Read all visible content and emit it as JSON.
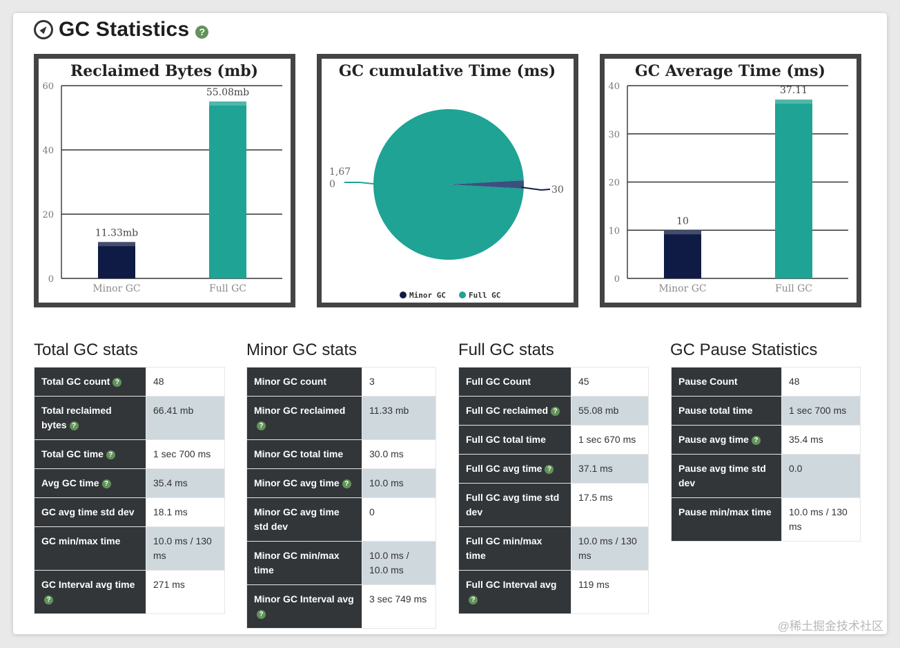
{
  "header": {
    "title": "GC Statistics",
    "help_icon": "question-circle-icon",
    "title_icon": "compass-icon"
  },
  "colors": {
    "minor": "#0f1b45",
    "full": "#1ea394",
    "table_key_bg": "#323639",
    "table_alt_bg": "#cfd8dd",
    "help": "#62935a"
  },
  "charts": {
    "reclaimed": {
      "type": "bar",
      "title": "Reclaimed Bytes (mb)",
      "categories": [
        "Minor GC",
        "Full GC"
      ],
      "values": [
        11.33,
        55.08
      ],
      "labels": [
        "11.33mb",
        "55.08mb"
      ],
      "yticks": [
        "0",
        "20",
        "40",
        "60"
      ],
      "ylim": [
        0,
        60
      ]
    },
    "cumulative": {
      "type": "pie",
      "title": "GC cumulative Time (ms)",
      "slices": [
        {
          "name": "Minor GC",
          "value": 30,
          "label": "30"
        },
        {
          "name": "Full GC",
          "value": 1670,
          "label_line1": "1,67",
          "label_line2": "0"
        }
      ],
      "legend": [
        "Minor GC",
        "Full GC"
      ]
    },
    "average": {
      "type": "bar",
      "title": "GC Average Time (ms)",
      "categories": [
        "Minor GC",
        "Full GC"
      ],
      "values": [
        10,
        37.11
      ],
      "labels": [
        "10",
        "37.11"
      ],
      "yticks": [
        "0",
        "10",
        "20",
        "30",
        "40"
      ],
      "ylim": [
        0,
        40
      ]
    }
  },
  "chart_data": [
    {
      "type": "bar",
      "title": "Reclaimed Bytes (mb)",
      "categories": [
        "Minor GC",
        "Full GC"
      ],
      "values": [
        11.33,
        55.08
      ],
      "ylim": [
        0,
        60
      ]
    },
    {
      "type": "pie",
      "title": "GC cumulative Time (ms)",
      "categories": [
        "Minor GC",
        "Full GC"
      ],
      "values": [
        30,
        1670
      ]
    },
    {
      "type": "bar",
      "title": "GC Average Time (ms)",
      "categories": [
        "Minor GC",
        "Full GC"
      ],
      "values": [
        10,
        37.11
      ],
      "ylim": [
        0,
        40
      ]
    }
  ],
  "tables": {
    "total": {
      "title": "Total GC stats",
      "rows": [
        {
          "k": "Total GC count",
          "v": "48",
          "help": true
        },
        {
          "k": "Total reclaimed bytes",
          "v": "66.41 mb",
          "help": true
        },
        {
          "k": "Total GC time",
          "v": "1 sec 700 ms",
          "help": true
        },
        {
          "k": "Avg GC time",
          "v": "35.4 ms",
          "help": true
        },
        {
          "k": "GC avg time std dev",
          "v": "18.1 ms",
          "help": false
        },
        {
          "k": "GC min/max time",
          "v": "10.0 ms / 130 ms",
          "help": false
        },
        {
          "k": "GC Interval avg time",
          "v": "271 ms",
          "help": true
        }
      ]
    },
    "minor": {
      "title": "Minor GC stats",
      "rows": [
        {
          "k": "Minor GC count",
          "v": "3",
          "help": false
        },
        {
          "k": "Minor GC reclaimed",
          "v": "11.33 mb",
          "help": true
        },
        {
          "k": "Minor GC total time",
          "v": "30.0 ms",
          "help": false
        },
        {
          "k": "Minor GC avg time",
          "v": "10.0 ms",
          "help": true
        },
        {
          "k": "Minor GC avg time std dev",
          "v": "0",
          "help": false
        },
        {
          "k": "Minor GC min/max time",
          "v": "10.0 ms / 10.0 ms",
          "help": false
        },
        {
          "k": "Minor GC Interval avg",
          "v": "3 sec 749 ms",
          "help": true
        }
      ]
    },
    "full": {
      "title": "Full GC stats",
      "rows": [
        {
          "k": "Full GC Count",
          "v": "45",
          "help": false
        },
        {
          "k": "Full GC reclaimed",
          "v": "55.08 mb",
          "help": true
        },
        {
          "k": "Full GC total time",
          "v": "1 sec 670 ms",
          "help": false
        },
        {
          "k": "Full GC avg time",
          "v": "37.1 ms",
          "help": true
        },
        {
          "k": "Full GC avg time std dev",
          "v": "17.5 ms",
          "help": false
        },
        {
          "k": "Full GC min/max time",
          "v": "10.0 ms / 130 ms",
          "help": false
        },
        {
          "k": "Full GC Interval avg",
          "v": "119 ms",
          "help": true
        }
      ]
    },
    "pause": {
      "title": "GC Pause Statistics",
      "rows": [
        {
          "k": "Pause Count",
          "v": "48",
          "help": false
        },
        {
          "k": "Pause total time",
          "v": "1 sec 700 ms",
          "help": false
        },
        {
          "k": "Pause avg time",
          "v": "35.4 ms",
          "help": true
        },
        {
          "k": "Pause avg time std dev",
          "v": "0.0",
          "help": false
        },
        {
          "k": "Pause min/max time",
          "v": "10.0 ms / 130 ms",
          "help": false
        }
      ]
    }
  },
  "help_glyph": "?",
  "watermark": "@稀土掘金技术社区"
}
